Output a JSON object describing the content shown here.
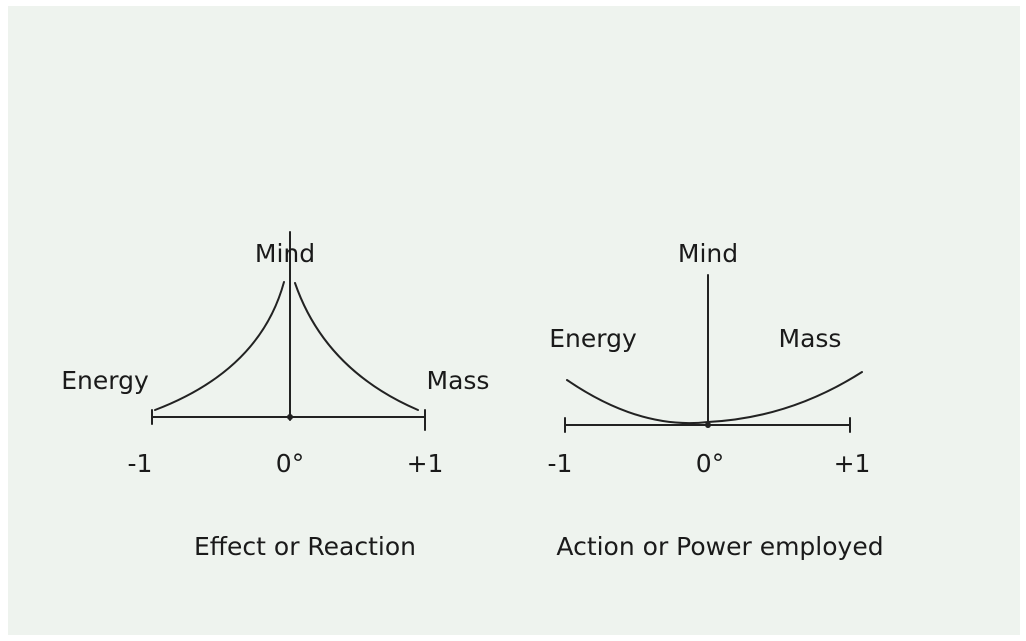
{
  "diagrams": [
    {
      "top": "Mind",
      "left": "Energy",
      "right": "Mass",
      "ticks": [
        "-1",
        "0°",
        "+1"
      ],
      "caption": "Effect or Reaction"
    },
    {
      "top": "Mind",
      "left": "Energy",
      "right": "Mass",
      "ticks": [
        "-1",
        "0°",
        "+1"
      ],
      "caption": "Action or Power employed"
    }
  ]
}
